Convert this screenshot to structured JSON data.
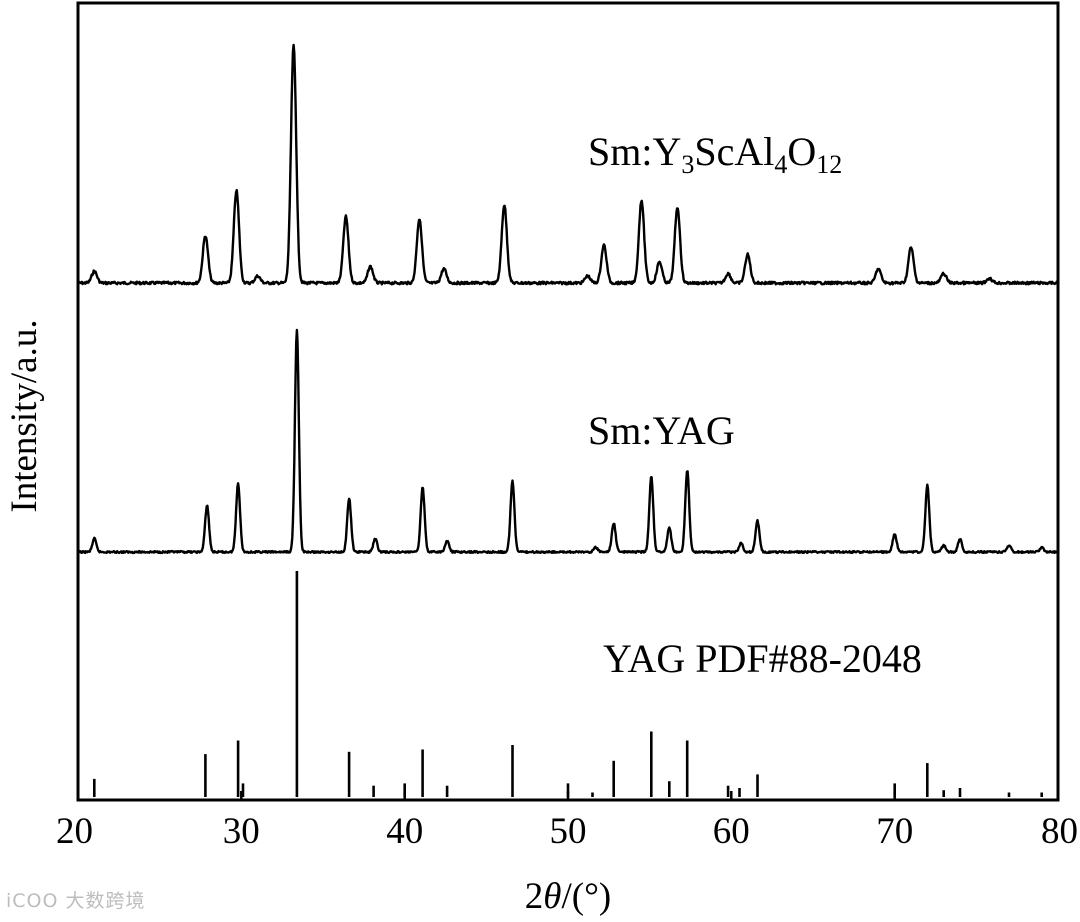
{
  "chart_data": {
    "type": "line",
    "xlabel": "2θ/(°)",
    "xlabel_parts": {
      "var": "θ",
      "prefix": "2",
      "suffix": "/(°)"
    },
    "ylabel": "Intensity/a.u.",
    "xlim": [
      20,
      80
    ],
    "x_ticks": [
      20,
      30,
      40,
      50,
      60,
      70,
      80
    ],
    "grid": false,
    "legend": "inline labels",
    "series": [
      {
        "name": "Sm:Y3ScAl4O12",
        "label_parts": [
          "Sm:Y",
          "3",
          "ScAl",
          "4",
          "O",
          "12"
        ],
        "style": "line",
        "peaks": [
          [
            21.0,
            0.05
          ],
          [
            27.8,
            0.2
          ],
          [
            29.7,
            0.39
          ],
          [
            31.0,
            0.03
          ],
          [
            33.2,
            1.0
          ],
          [
            36.4,
            0.28
          ],
          [
            37.9,
            0.07
          ],
          [
            40.9,
            0.27
          ],
          [
            42.4,
            0.06
          ],
          [
            46.1,
            0.33
          ],
          [
            51.2,
            0.03
          ],
          [
            52.2,
            0.16
          ],
          [
            54.5,
            0.35
          ],
          [
            55.6,
            0.09
          ],
          [
            56.7,
            0.32
          ],
          [
            59.8,
            0.04
          ],
          [
            61.0,
            0.12
          ],
          [
            69.0,
            0.06
          ],
          [
            71.0,
            0.15
          ],
          [
            73.0,
            0.04
          ],
          [
            75.8,
            0.02
          ]
        ]
      },
      {
        "name": "Sm:YAG",
        "label_parts": [
          "Sm:YAG"
        ],
        "style": "line",
        "peaks": [
          [
            21.0,
            0.06
          ],
          [
            27.9,
            0.21
          ],
          [
            29.8,
            0.31
          ],
          [
            33.4,
            1.0
          ],
          [
            36.6,
            0.24
          ],
          [
            38.2,
            0.06
          ],
          [
            41.1,
            0.29
          ],
          [
            42.6,
            0.05
          ],
          [
            46.6,
            0.32
          ],
          [
            51.7,
            0.02
          ],
          [
            52.8,
            0.13
          ],
          [
            55.1,
            0.34
          ],
          [
            56.2,
            0.11
          ],
          [
            57.3,
            0.37
          ],
          [
            60.6,
            0.04
          ],
          [
            61.6,
            0.14
          ],
          [
            70.0,
            0.08
          ],
          [
            72.0,
            0.3
          ],
          [
            73.0,
            0.03
          ],
          [
            74.0,
            0.06
          ],
          [
            77.0,
            0.03
          ],
          [
            79.0,
            0.02
          ]
        ]
      },
      {
        "name": "YAG PDF#88-2048",
        "label_parts": [
          "YAG PDF#88-2048"
        ],
        "style": "stick",
        "peaks": [
          [
            21.0,
            0.08
          ],
          [
            27.8,
            0.19
          ],
          [
            29.8,
            0.25
          ],
          [
            30.1,
            0.06
          ],
          [
            33.4,
            1.0
          ],
          [
            36.6,
            0.2
          ],
          [
            38.1,
            0.05
          ],
          [
            40.0,
            0.06
          ],
          [
            41.1,
            0.21
          ],
          [
            42.6,
            0.05
          ],
          [
            46.6,
            0.23
          ],
          [
            50.0,
            0.06
          ],
          [
            51.5,
            0.02
          ],
          [
            52.8,
            0.16
          ],
          [
            55.1,
            0.29
          ],
          [
            56.2,
            0.07
          ],
          [
            57.3,
            0.25
          ],
          [
            59.8,
            0.05
          ],
          [
            60.5,
            0.04
          ],
          [
            61.6,
            0.1
          ],
          [
            70.0,
            0.06
          ],
          [
            72.0,
            0.15
          ],
          [
            73.0,
            0.03
          ],
          [
            74.0,
            0.04
          ],
          [
            77.0,
            0.02
          ],
          [
            79.0,
            0.02
          ]
        ]
      }
    ]
  },
  "watermark": "iCOO 大数跨境"
}
